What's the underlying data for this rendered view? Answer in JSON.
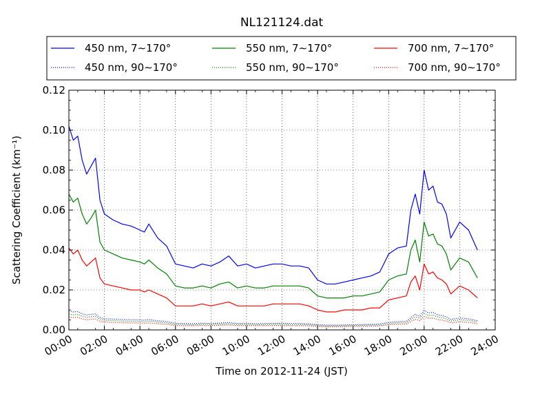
{
  "chart_data": {
    "type": "line",
    "title": "NL121124.dat",
    "xlabel": "Time on 2012-11-24 (JST)",
    "ylabel": "Scattering Coefficient (km⁻¹)",
    "x_unit": "hours",
    "xlim": [
      0,
      24
    ],
    "ylim": [
      0,
      0.12
    ],
    "x_ticks": [
      0,
      2,
      4,
      6,
      8,
      10,
      12,
      14,
      16,
      18,
      20,
      22,
      24
    ],
    "x_tick_labels": [
      "00:00",
      "02:00",
      "04:00",
      "06:00",
      "08:00",
      "10:00",
      "12:00",
      "14:00",
      "16:00",
      "18:00",
      "20:00",
      "22:00",
      "24:00"
    ],
    "y_ticks": [
      0,
      0.02,
      0.04,
      0.06,
      0.08,
      0.1,
      0.12
    ],
    "y_tick_labels": [
      "0.00",
      "0.02",
      "0.04",
      "0.06",
      "0.08",
      "0.10",
      "0.12"
    ],
    "grid": true,
    "legend_position": "top",
    "x": [
      0,
      0.25,
      0.5,
      0.75,
      1,
      1.25,
      1.5,
      1.75,
      2,
      2.5,
      3,
      3.5,
      4,
      4.25,
      4.5,
      5,
      5.5,
      6,
      6.5,
      7,
      7.5,
      8,
      8.5,
      9,
      9.5,
      10,
      10.5,
      11,
      11.5,
      12,
      12.5,
      13,
      13.5,
      14,
      14.5,
      15,
      15.5,
      16,
      16.5,
      17,
      17.5,
      18,
      18.5,
      19,
      19.25,
      19.5,
      19.75,
      20,
      20.25,
      20.5,
      20.75,
      21,
      21.25,
      21.5,
      22,
      22.5,
      23
    ],
    "series": [
      {
        "name": "450 nm, 7∼170°",
        "color": "#0000ff",
        "style": "solid",
        "values": [
          0.102,
          0.095,
          0.097,
          0.085,
          0.078,
          0.082,
          0.086,
          0.065,
          0.058,
          0.055,
          0.053,
          0.052,
          0.05,
          0.049,
          0.053,
          0.046,
          0.042,
          0.033,
          0.032,
          0.031,
          0.033,
          0.032,
          0.034,
          0.037,
          0.032,
          0.033,
          0.031,
          0.032,
          0.033,
          0.033,
          0.032,
          0.032,
          0.031,
          0.025,
          0.023,
          0.023,
          0.024,
          0.025,
          0.026,
          0.027,
          0.029,
          0.038,
          0.041,
          0.042,
          0.06,
          0.068,
          0.058,
          0.08,
          0.07,
          0.072,
          0.064,
          0.063,
          0.058,
          0.046,
          0.054,
          0.05,
          0.04
        ]
      },
      {
        "name": "550 nm, 7∼170°",
        "color": "#008000",
        "style": "solid",
        "values": [
          0.068,
          0.064,
          0.066,
          0.058,
          0.053,
          0.056,
          0.06,
          0.044,
          0.04,
          0.038,
          0.036,
          0.035,
          0.034,
          0.033,
          0.035,
          0.031,
          0.028,
          0.022,
          0.021,
          0.021,
          0.022,
          0.021,
          0.023,
          0.024,
          0.021,
          0.022,
          0.021,
          0.021,
          0.022,
          0.022,
          0.022,
          0.022,
          0.021,
          0.017,
          0.016,
          0.016,
          0.016,
          0.017,
          0.017,
          0.018,
          0.019,
          0.025,
          0.027,
          0.028,
          0.04,
          0.045,
          0.034,
          0.054,
          0.047,
          0.048,
          0.043,
          0.042,
          0.038,
          0.03,
          0.036,
          0.034,
          0.026
        ]
      },
      {
        "name": "700 nm, 7∼170°",
        "color": "#ff0000",
        "style": "solid",
        "values": [
          0.041,
          0.038,
          0.04,
          0.035,
          0.032,
          0.034,
          0.036,
          0.026,
          0.023,
          0.022,
          0.021,
          0.02,
          0.02,
          0.019,
          0.02,
          0.018,
          0.016,
          0.012,
          0.012,
          0.012,
          0.013,
          0.012,
          0.013,
          0.014,
          0.012,
          0.012,
          0.012,
          0.012,
          0.013,
          0.013,
          0.013,
          0.013,
          0.012,
          0.01,
          0.009,
          0.009,
          0.01,
          0.01,
          0.01,
          0.011,
          0.011,
          0.015,
          0.016,
          0.017,
          0.024,
          0.027,
          0.02,
          0.033,
          0.028,
          0.029,
          0.026,
          0.025,
          0.023,
          0.018,
          0.022,
          0.02,
          0.016
        ]
      },
      {
        "name": "450 nm, 90∼170°",
        "color": "#0000ff",
        "style": "dotted",
        "values": [
          0.0095,
          0.009,
          0.0092,
          0.008,
          0.0075,
          0.0078,
          0.008,
          0.0062,
          0.0056,
          0.0054,
          0.0052,
          0.0051,
          0.005,
          0.0049,
          0.0052,
          0.0046,
          0.0042,
          0.0033,
          0.0032,
          0.0031,
          0.0033,
          0.0032,
          0.0034,
          0.0037,
          0.0032,
          0.0033,
          0.0031,
          0.0032,
          0.0033,
          0.0033,
          0.0032,
          0.0032,
          0.0031,
          0.0026,
          0.0024,
          0.0024,
          0.0025,
          0.0026,
          0.0027,
          0.0028,
          0.003,
          0.0038,
          0.0041,
          0.0043,
          0.0062,
          0.0078,
          0.0068,
          0.0098,
          0.0085,
          0.0088,
          0.0076,
          0.0072,
          0.0065,
          0.0052,
          0.006,
          0.0056,
          0.0046
        ]
      },
      {
        "name": "550 nm, 90∼170°",
        "color": "#008000",
        "style": "dotted",
        "values": [
          0.008,
          0.0076,
          0.0078,
          0.0068,
          0.0063,
          0.0066,
          0.0068,
          0.0053,
          0.0048,
          0.0046,
          0.0044,
          0.0043,
          0.0042,
          0.0041,
          0.0044,
          0.0039,
          0.0035,
          0.0028,
          0.0027,
          0.0026,
          0.0028,
          0.0027,
          0.0029,
          0.0031,
          0.0027,
          0.0028,
          0.0026,
          0.0027,
          0.0028,
          0.0028,
          0.0027,
          0.0027,
          0.0026,
          0.0022,
          0.002,
          0.002,
          0.0021,
          0.0022,
          0.0023,
          0.0024,
          0.0025,
          0.0032,
          0.0035,
          0.0036,
          0.0053,
          0.0066,
          0.0058,
          0.0083,
          0.0072,
          0.0075,
          0.0065,
          0.0061,
          0.0055,
          0.0044,
          0.0051,
          0.0048,
          0.0039
        ]
      },
      {
        "name": "700 nm, 90∼170°",
        "color": "#ff0000",
        "style": "dotted",
        "values": [
          0.0065,
          0.0062,
          0.0063,
          0.0055,
          0.0051,
          0.0053,
          0.0055,
          0.0043,
          0.0039,
          0.0037,
          0.0036,
          0.0035,
          0.0034,
          0.0033,
          0.0035,
          0.0031,
          0.0028,
          0.0022,
          0.0021,
          0.0021,
          0.0022,
          0.0021,
          0.0023,
          0.0025,
          0.0021,
          0.0022,
          0.0021,
          0.0021,
          0.0022,
          0.0022,
          0.0021,
          0.0021,
          0.0021,
          0.0017,
          0.0016,
          0.0016,
          0.0017,
          0.0018,
          0.0018,
          0.0019,
          0.002,
          0.0026,
          0.0028,
          0.0029,
          0.0043,
          0.0053,
          0.0047,
          0.0067,
          0.0058,
          0.006,
          0.0052,
          0.0049,
          0.0044,
          0.0035,
          0.0041,
          0.0038,
          0.0031
        ]
      }
    ],
    "legend_order": [
      0,
      1,
      2,
      3,
      4,
      5
    ]
  }
}
